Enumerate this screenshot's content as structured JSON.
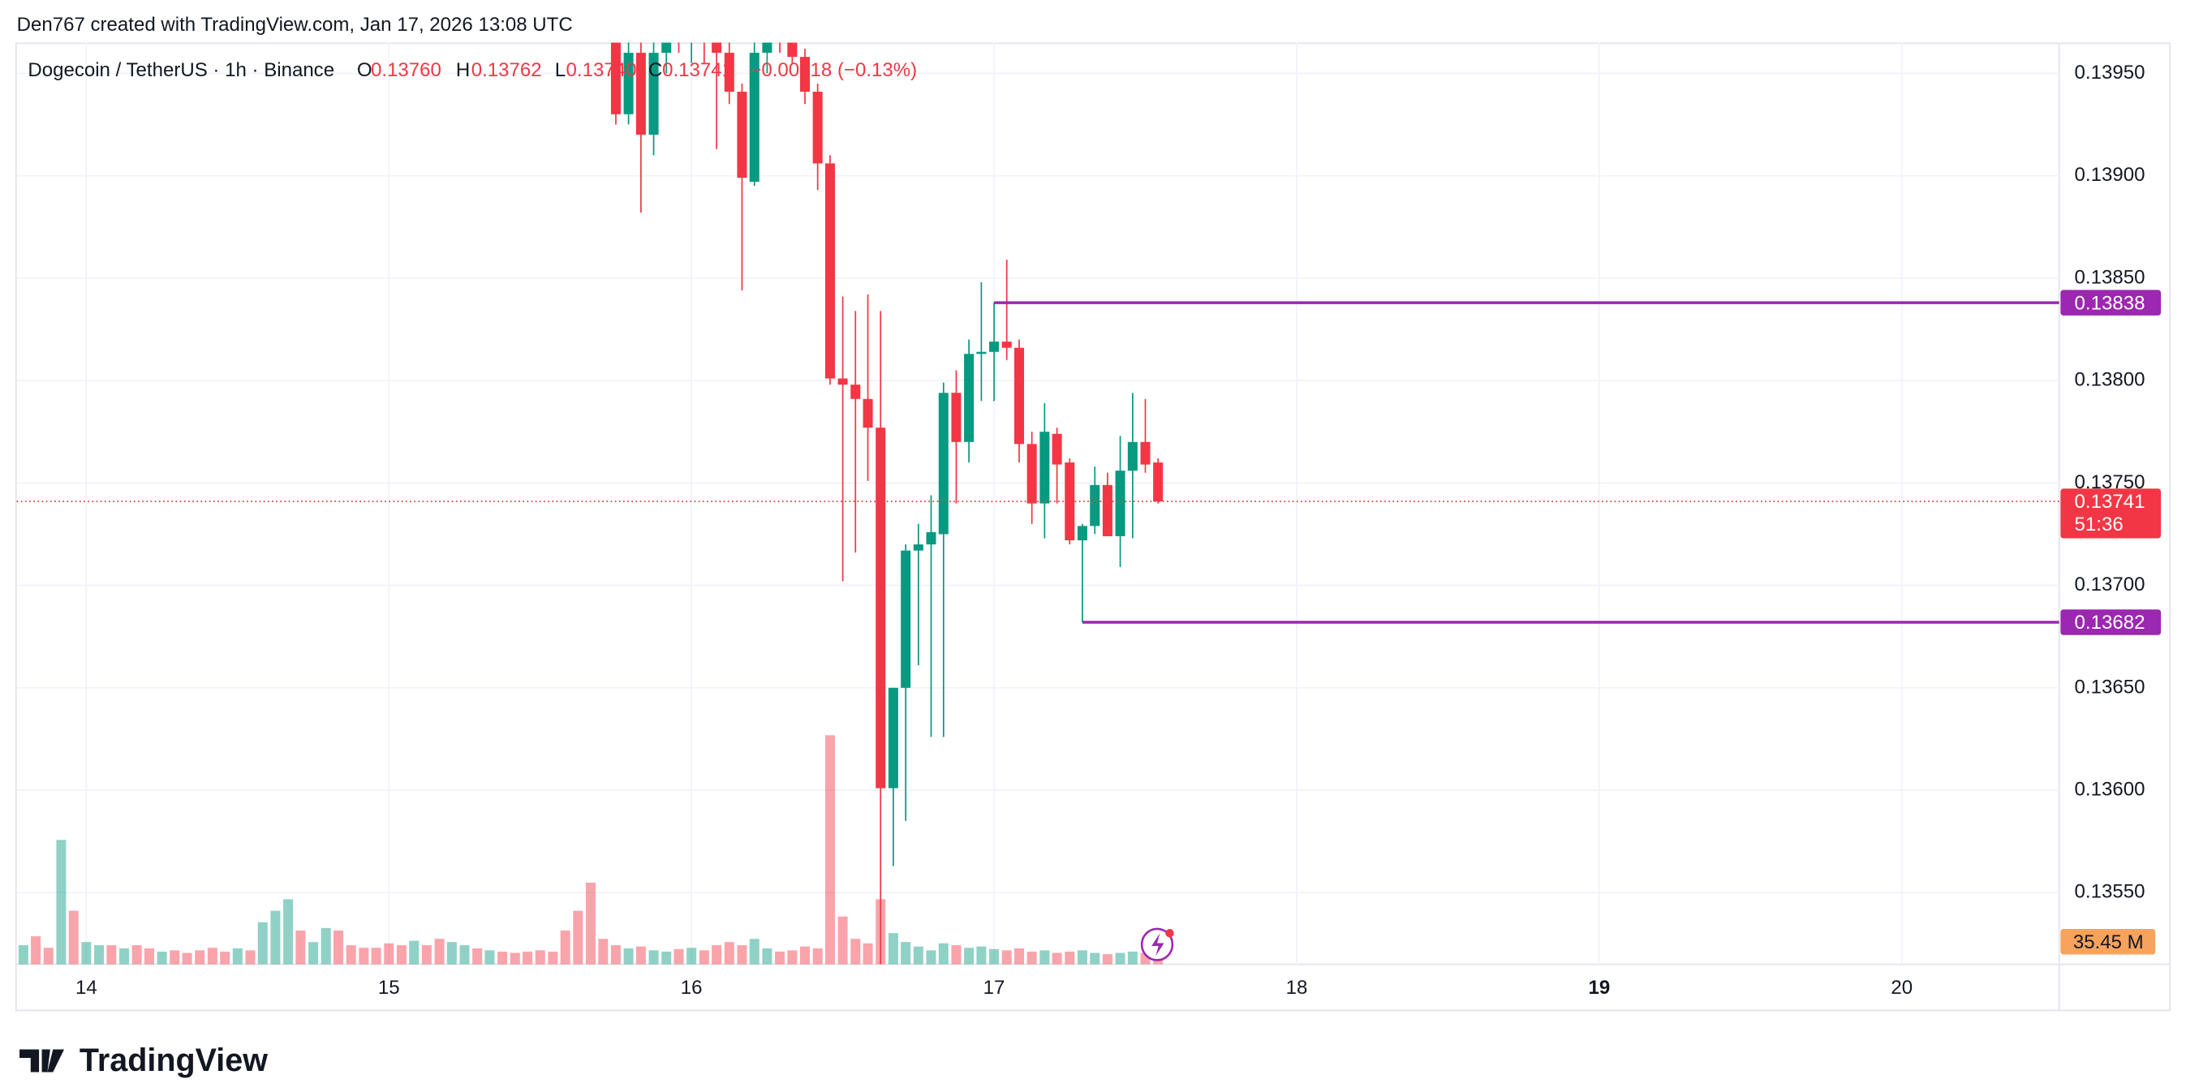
{
  "chart_data": {
    "type": "candlestick",
    "header": "Den767 created with TradingView.com, Jan 17, 2026 13:08 UTC",
    "brand": "TradingView",
    "legend": {
      "symbol": "Dogecoin / TetherUS · 1h · Binance",
      "o_label": "O",
      "o": "0.13760",
      "h_label": "H",
      "h": "0.13762",
      "l_label": "L",
      "l": "0.13740",
      "c_label": "C",
      "c": "0.13741",
      "change": "−0.00018 (−0.13%)"
    },
    "xlim": [
      13.77,
      20.52
    ],
    "xticks": [
      14,
      15,
      16,
      17,
      18,
      19,
      20
    ],
    "bold_tick": 19,
    "ylim": [
      0.13515,
      0.13965
    ],
    "yticks": [
      {
        "value": 0.1395,
        "label": "0.13950"
      },
      {
        "value": 0.139,
        "label": "0.13900"
      },
      {
        "value": 0.1385,
        "label": "0.13850"
      },
      {
        "value": 0.138,
        "label": "0.13800"
      },
      {
        "value": 0.1375,
        "label": "0.13750"
      },
      {
        "value": 0.137,
        "label": "0.13700"
      },
      {
        "value": 0.1365,
        "label": "0.13650"
      },
      {
        "value": 0.136,
        "label": "0.13600"
      },
      {
        "value": 0.1355,
        "label": "0.13550"
      }
    ],
    "grid": true,
    "up_color": "#089981",
    "down_color": "#f23645",
    "x": [
      13.792,
      13.833,
      13.875,
      13.917,
      13.958,
      14.0,
      14.042,
      14.083,
      14.125,
      14.167,
      14.208,
      14.25,
      14.292,
      14.333,
      14.375,
      14.417,
      14.458,
      14.5,
      14.542,
      14.583,
      14.625,
      14.667,
      14.708,
      14.75,
      14.792,
      14.833,
      14.875,
      14.917,
      14.958,
      15.0,
      15.042,
      15.083,
      15.125,
      15.167,
      15.208,
      15.25,
      15.292,
      15.333,
      15.375,
      15.417,
      15.458,
      15.5,
      15.542,
      15.583,
      15.625,
      15.667,
      15.708,
      15.75,
      15.792,
      15.833,
      15.875,
      15.917,
      15.958,
      16.0,
      16.042,
      16.083,
      16.125,
      16.167,
      16.208,
      16.25,
      16.292,
      16.333,
      16.375,
      16.417,
      16.458,
      16.5,
      16.542,
      16.583,
      16.625,
      16.667,
      16.708,
      16.75,
      16.792,
      16.833,
      16.875,
      16.917,
      16.958,
      17.0,
      17.042,
      17.083,
      17.125,
      17.167,
      17.208,
      17.25,
      17.292,
      17.333,
      17.375,
      17.417,
      17.458,
      17.5,
      17.542
    ],
    "open": [
      null,
      null,
      null,
      null,
      null,
      null,
      null,
      null,
      null,
      null,
      null,
      null,
      null,
      null,
      null,
      null,
      null,
      null,
      null,
      null,
      null,
      null,
      null,
      null,
      null,
      null,
      null,
      null,
      null,
      null,
      null,
      null,
      null,
      null,
      null,
      null,
      null,
      null,
      null,
      null,
      null,
      null,
      null,
      null,
      null,
      null,
      null,
      0.13975,
      0.1393,
      0.1396,
      0.1392,
      0.1396,
      0.1398,
      0.1397,
      0.13985,
      0.13965,
      0.1396,
      0.13941,
      0.13897,
      0.1396,
      0.1398,
      0.1397,
      0.13958,
      0.13941,
      0.13906,
      0.13801,
      0.13798,
      0.13791,
      0.13777,
      0.13601,
      0.1365,
      0.13717,
      0.1372,
      0.13725,
      0.13794,
      0.1377,
      0.13813,
      0.13814,
      0.13819,
      0.13816,
      0.13769,
      0.1374,
      0.13774,
      0.1376,
      0.13722,
      0.13729,
      0.13749,
      0.13724,
      0.13756,
      0.1377,
      0.1376
    ],
    "high": [
      null,
      null,
      null,
      null,
      null,
      null,
      null,
      null,
      null,
      null,
      null,
      null,
      null,
      null,
      null,
      null,
      null,
      null,
      null,
      null,
      null,
      null,
      null,
      null,
      null,
      null,
      null,
      null,
      null,
      null,
      null,
      null,
      null,
      null,
      null,
      null,
      null,
      null,
      null,
      null,
      null,
      null,
      null,
      null,
      null,
      null,
      null,
      0.13985,
      0.1397,
      0.13968,
      0.13965,
      0.1399,
      0.13995,
      0.14,
      0.13995,
      0.13975,
      0.1397,
      0.13945,
      0.13965,
      0.1399,
      0.1399,
      0.13975,
      0.13962,
      0.13945,
      0.1391,
      0.13841,
      0.13834,
      0.13842,
      0.13834,
      0.1365,
      0.1372,
      0.1373,
      0.13744,
      0.13799,
      0.13805,
      0.1382,
      0.13848,
      0.13838,
      0.13859,
      0.1382,
      0.13775,
      0.13789,
      0.13777,
      0.13762,
      0.1373,
      0.13758,
      0.13755,
      0.13773,
      0.13794,
      0.13791,
      0.13762
    ],
    "low": [
      null,
      null,
      null,
      null,
      null,
      null,
      null,
      null,
      null,
      null,
      null,
      null,
      null,
      null,
      null,
      null,
      null,
      null,
      null,
      null,
      null,
      null,
      null,
      null,
      null,
      null,
      null,
      null,
      null,
      null,
      null,
      null,
      null,
      null,
      null,
      null,
      null,
      null,
      null,
      null,
      null,
      null,
      null,
      null,
      null,
      null,
      null,
      0.13925,
      0.13925,
      0.13882,
      0.1391,
      0.1395,
      0.1396,
      0.13955,
      0.13955,
      0.13913,
      0.13935,
      0.13844,
      0.13895,
      0.1395,
      0.1396,
      0.13955,
      0.13935,
      0.13893,
      0.13798,
      0.13702,
      0.13716,
      0.13751,
      0.13515,
      0.13563,
      0.13585,
      0.13661,
      0.13626,
      0.13626,
      0.1374,
      0.1376,
      0.1379,
      0.1379,
      0.1381,
      0.1376,
      0.1373,
      0.13723,
      0.1374,
      0.1372,
      0.13682,
      0.13725,
      0.13724,
      0.13709,
      0.13723,
      0.13755,
      0.1374
    ],
    "close": [
      null,
      null,
      null,
      null,
      null,
      null,
      null,
      null,
      null,
      null,
      null,
      null,
      null,
      null,
      null,
      null,
      null,
      null,
      null,
      null,
      null,
      null,
      null,
      null,
      null,
      null,
      null,
      null,
      null,
      null,
      null,
      null,
      null,
      null,
      null,
      null,
      null,
      null,
      null,
      null,
      null,
      null,
      null,
      null,
      null,
      null,
      null,
      0.1393,
      0.1396,
      0.1392,
      0.1396,
      0.1398,
      0.1397,
      0.13985,
      0.13965,
      0.1396,
      0.13941,
      0.13899,
      0.1396,
      0.1398,
      0.1397,
      0.13958,
      0.13941,
      0.13906,
      0.13801,
      0.13798,
      0.13791,
      0.13777,
      0.13601,
      0.1365,
      0.13717,
      0.1372,
      0.13726,
      0.13794,
      0.1377,
      0.13813,
      0.13814,
      0.13819,
      0.13816,
      0.13769,
      0.1374,
      0.13775,
      0.13759,
      0.13722,
      0.13729,
      0.13749,
      0.13724,
      0.13756,
      0.1377,
      0.13759,
      0.13741
    ],
    "vlim": [
      0,
      600
    ],
    "volume": [
      30,
      44,
      26,
      195,
      84,
      35,
      30,
      30,
      25,
      30,
      25,
      20,
      22,
      18,
      22,
      26,
      20,
      25,
      22,
      66,
      84,
      102,
      53,
      35,
      57,
      53,
      30,
      26,
      26,
      33,
      30,
      37,
      30,
      40,
      35,
      30,
      25,
      22,
      20,
      18,
      20,
      22,
      20,
      53,
      84,
      128,
      40,
      30,
      25,
      28,
      22,
      20,
      24,
      26,
      22,
      30,
      35,
      30,
      40,
      25,
      20,
      22,
      28,
      25,
      359,
      75,
      40,
      33,
      102,
      49,
      35,
      28,
      22,
      33,
      30,
      26,
      28,
      24,
      22,
      25,
      20,
      22,
      18,
      20,
      22,
      18,
      16,
      18,
      20,
      18,
      16
    ],
    "volume_up": [
      true,
      false,
      false,
      true,
      false,
      true,
      true,
      false,
      true,
      false,
      false,
      true,
      false,
      false,
      false,
      false,
      false,
      true,
      false,
      true,
      true,
      true,
      false,
      true,
      true,
      false,
      false,
      false,
      false,
      false,
      false,
      true,
      false,
      false,
      true,
      true,
      false,
      true,
      false,
      false,
      false,
      false,
      false,
      false,
      false,
      false,
      false,
      null,
      null,
      null,
      null,
      null,
      null,
      null,
      null,
      null,
      null,
      null,
      null,
      null,
      null,
      null,
      null,
      null,
      null,
      null,
      null,
      null,
      null,
      null,
      null,
      null,
      null,
      null,
      null,
      null,
      null,
      null,
      null,
      null,
      null,
      null,
      null,
      null,
      null,
      null,
      null,
      null,
      null,
      null,
      null
    ],
    "volume_last": {
      "value": 35.45,
      "label": "35.45 M"
    },
    "levels": [
      {
        "value": 0.13838,
        "from": 17.0,
        "color": "#9c27b0"
      },
      {
        "value": 0.13682,
        "from": 17.292,
        "color": "#9c27b0"
      }
    ],
    "last": {
      "value": 0.13741,
      "countdown": "51:36"
    }
  }
}
